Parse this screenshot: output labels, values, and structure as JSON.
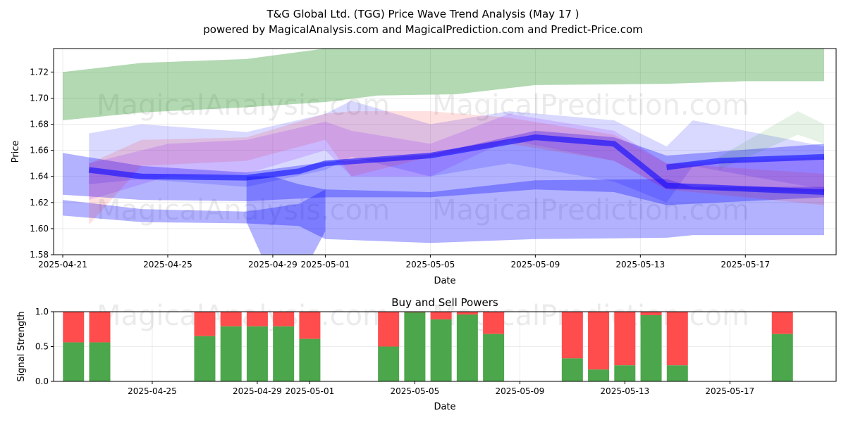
{
  "header": {
    "title": "T&G Global Ltd. (TGG) Price Wave Trend Analysis (May 17 )",
    "subtitle": "powered by MagicalAnalysis.com and MagicalPrediction.com and Predict-Price.com"
  },
  "watermarks": [
    "MagicalAnalysis.com",
    "MagicalPrediction.com"
  ],
  "chart_data": [
    {
      "type": "area",
      "title": "",
      "xlabel": "Date",
      "ylabel": "Price",
      "ylim": [
        1.58,
        1.738
      ],
      "xlim": [
        "2025-04-20",
        "2025-05-20"
      ],
      "x_ticks": [
        "2025-04-21",
        "2025-04-25",
        "2025-04-29",
        "2025-05-01",
        "2025-05-05",
        "2025-05-09",
        "2025-05-13",
        "2025-05-17"
      ],
      "y_ticks": [
        1.58,
        1.6,
        1.62,
        1.64,
        1.66,
        1.68,
        1.7,
        1.72
      ],
      "grid": true,
      "bands": [
        {
          "color": "#008000",
          "opacity": 0.3,
          "x": [
            "2025-04-21",
            "2025-04-24",
            "2025-04-28",
            "2025-05-01",
            "2025-05-03",
            "2025-05-06",
            "2025-05-09",
            "2025-05-14",
            "2025-05-17",
            "2025-05-20"
          ],
          "upper": [
            1.72,
            1.727,
            1.73,
            1.738,
            1.738,
            1.738,
            1.738,
            1.738,
            1.738,
            1.738
          ],
          "lower": [
            1.683,
            1.689,
            1.693,
            1.697,
            1.702,
            1.703,
            1.71,
            1.711,
            1.713,
            1.713
          ]
        },
        {
          "color": "#0000ff",
          "opacity": 0.3,
          "x": [
            "2025-04-21",
            "2025-04-24",
            "2025-04-28",
            "2025-04-30",
            "2025-05-01",
            "2025-05-05",
            "2025-05-09",
            "2025-05-14",
            "2025-05-15",
            "2025-05-20"
          ],
          "upper": [
            1.622,
            1.615,
            1.613,
            1.619,
            1.63,
            1.628,
            1.637,
            1.638,
            1.632,
            1.632
          ],
          "lower": [
            1.61,
            1.605,
            1.604,
            1.602,
            1.592,
            1.589,
            1.592,
            1.593,
            1.595,
            1.595
          ]
        },
        {
          "color": "#0000ff",
          "opacity": 0.3,
          "x": [
            "2025-04-28",
            "2025-04-29",
            "2025-04-30",
            "2025-05-01"
          ],
          "upper": [
            1.64,
            1.64,
            1.634,
            1.63
          ],
          "lower": [
            1.605,
            1.56,
            1.56,
            1.598
          ]
        },
        {
          "color": "#0000ff",
          "opacity": 0.3,
          "x": [
            "2025-04-21",
            "2025-04-24",
            "2025-04-28",
            "2025-05-01",
            "2025-05-05",
            "2025-05-09",
            "2025-05-12",
            "2025-05-14",
            "2025-05-20"
          ],
          "upper": [
            1.658,
            1.648,
            1.643,
            1.651,
            1.657,
            1.675,
            1.67,
            1.656,
            1.665
          ],
          "lower": [
            1.626,
            1.622,
            1.621,
            1.624,
            1.624,
            1.63,
            1.628,
            1.618,
            1.624
          ]
        },
        {
          "color": "#0000ff",
          "opacity": 0.15,
          "x": [
            "2025-04-22",
            "2025-04-24",
            "2025-04-28",
            "2025-05-01",
            "2025-05-02",
            "2025-05-05",
            "2025-05-08",
            "2025-05-12",
            "2025-05-14",
            "2025-05-15",
            "2025-05-20"
          ],
          "upper": [
            1.673,
            1.68,
            1.674,
            1.688,
            1.698,
            1.68,
            1.69,
            1.683,
            1.663,
            1.683,
            1.663
          ],
          "lower": [
            1.634,
            1.638,
            1.632,
            1.645,
            1.655,
            1.64,
            1.65,
            1.636,
            1.62,
            1.648,
            1.63
          ]
        },
        {
          "color": "#ff0000",
          "opacity": 0.12,
          "x": [
            "2025-04-22",
            "2025-04-24",
            "2025-04-28",
            "2025-05-01",
            "2025-05-02",
            "2025-05-05",
            "2025-05-08",
            "2025-05-12",
            "2025-05-14",
            "2025-05-20"
          ],
          "upper": [
            1.65,
            1.668,
            1.67,
            1.688,
            1.69,
            1.69,
            1.685,
            1.672,
            1.65,
            1.642
          ],
          "lower": [
            1.603,
            1.648,
            1.652,
            1.668,
            1.64,
            1.655,
            1.665,
            1.652,
            1.63,
            1.618
          ]
        },
        {
          "color": "#008000",
          "opacity": 0.1,
          "x": [
            "2025-05-16",
            "2025-05-19",
            "2025-05-20"
          ],
          "upper": [
            1.655,
            1.69,
            1.68
          ],
          "lower": [
            1.645,
            1.672,
            1.665
          ]
        },
        {
          "color": "#8000ff",
          "opacity": 0.15,
          "x": [
            "2025-04-22",
            "2025-04-25",
            "2025-04-28",
            "2025-05-01",
            "2025-05-02",
            "2025-05-05",
            "2025-05-08",
            "2025-05-12",
            "2025-05-14",
            "2025-05-20"
          ],
          "upper": [
            1.65,
            1.665,
            1.668,
            1.682,
            1.675,
            1.665,
            1.688,
            1.675,
            1.65,
            1.655
          ],
          "lower": [
            1.622,
            1.64,
            1.642,
            1.66,
            1.64,
            1.64,
            1.668,
            1.652,
            1.63,
            1.628
          ]
        }
      ],
      "lines": [
        {
          "color": "#0000ff",
          "opacity": 0.55,
          "x": [
            "2025-04-22",
            "2025-04-24",
            "2025-04-28",
            "2025-04-30",
            "2025-05-01",
            "2025-05-05",
            "2025-05-09",
            "2025-05-12",
            "2025-05-14",
            "2025-05-20"
          ],
          "y": [
            1.645,
            1.64,
            1.639,
            1.644,
            1.65,
            1.656,
            1.67,
            1.665,
            1.633,
            1.628
          ]
        },
        {
          "color": "#0000ff",
          "opacity": 0.55,
          "x": [
            "2025-05-14",
            "2025-05-16",
            "2025-05-20"
          ],
          "y": [
            1.647,
            1.652,
            1.655
          ]
        }
      ]
    },
    {
      "type": "bar",
      "title": "Buy and Sell Powers",
      "xlabel": "Date",
      "ylabel": "Signal Strength",
      "ylim": [
        0,
        1.0
      ],
      "y_ticks": [
        0.0,
        0.5,
        1.0
      ],
      "x_ticks": [
        "2025-04-25",
        "2025-04-29",
        "2025-05-01",
        "2025-05-05",
        "2025-05-09",
        "2025-05-13",
        "2025-05-17"
      ],
      "grid": true,
      "colors": {
        "buy": "#4ca64c",
        "sell": "#ff4d4d"
      },
      "dates": [
        "2025-04-22",
        "2025-04-23",
        "2025-04-27",
        "2025-04-28",
        "2025-04-29",
        "2025-04-30",
        "2025-05-01",
        "2025-05-04",
        "2025-05-05",
        "2025-05-06",
        "2025-05-07",
        "2025-05-08",
        "2025-05-11",
        "2025-05-12",
        "2025-05-13",
        "2025-05-14",
        "2025-05-15",
        "2025-05-19"
      ],
      "buy": [
        0.56,
        0.56,
        0.65,
        0.79,
        0.79,
        0.79,
        0.61,
        0.5,
        0.99,
        0.89,
        0.96,
        0.68,
        0.33,
        0.17,
        0.23,
        0.95,
        0.23,
        0.68
      ]
    }
  ]
}
